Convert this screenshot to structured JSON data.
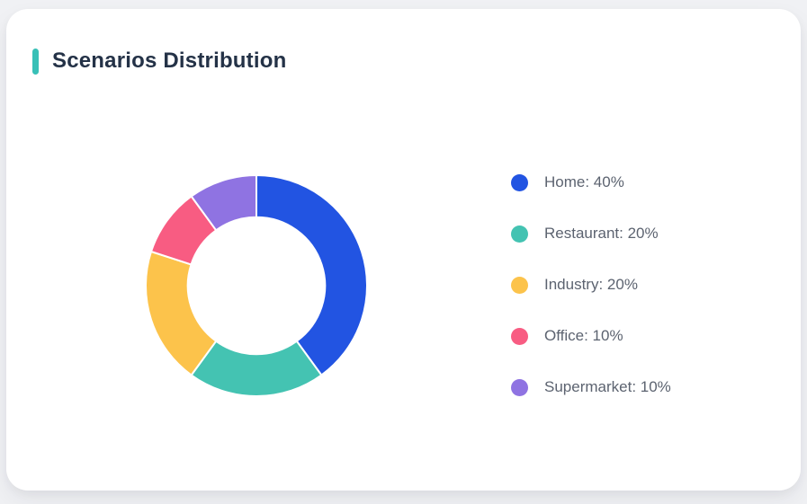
{
  "page": {
    "background_color": "#f0f1f4"
  },
  "card": {
    "background_color": "#ffffff",
    "accent_color": "#38c0b7"
  },
  "header": {
    "title": "Scenarios Distribution"
  },
  "chart_data": {
    "type": "pie",
    "subtype": "donut",
    "title": "Scenarios Distribution",
    "categories": [
      "Home",
      "Restaurant",
      "Industry",
      "Office",
      "Supermarket"
    ],
    "values": [
      40,
      20,
      20,
      10,
      10
    ],
    "unit": "%",
    "colors": [
      "#2254e2",
      "#44c3b2",
      "#fcc34b",
      "#f85c82",
      "#8f73e2"
    ],
    "start_angle_deg": 0,
    "clockwise": true,
    "inner_radius_ratio": 0.62,
    "segment_gap_color": "#ffffff",
    "legend_position": "right",
    "legend_items": [
      {
        "label": "Home: 40%",
        "color": "#2254e2"
      },
      {
        "label": "Restaurant: 20%",
        "color": "#44c3b2"
      },
      {
        "label": "Industry: 20%",
        "color": "#fcc34b"
      },
      {
        "label": "Office: 10%",
        "color": "#f85c82"
      },
      {
        "label": "Supermarket: 10%",
        "color": "#8f73e2"
      }
    ]
  }
}
